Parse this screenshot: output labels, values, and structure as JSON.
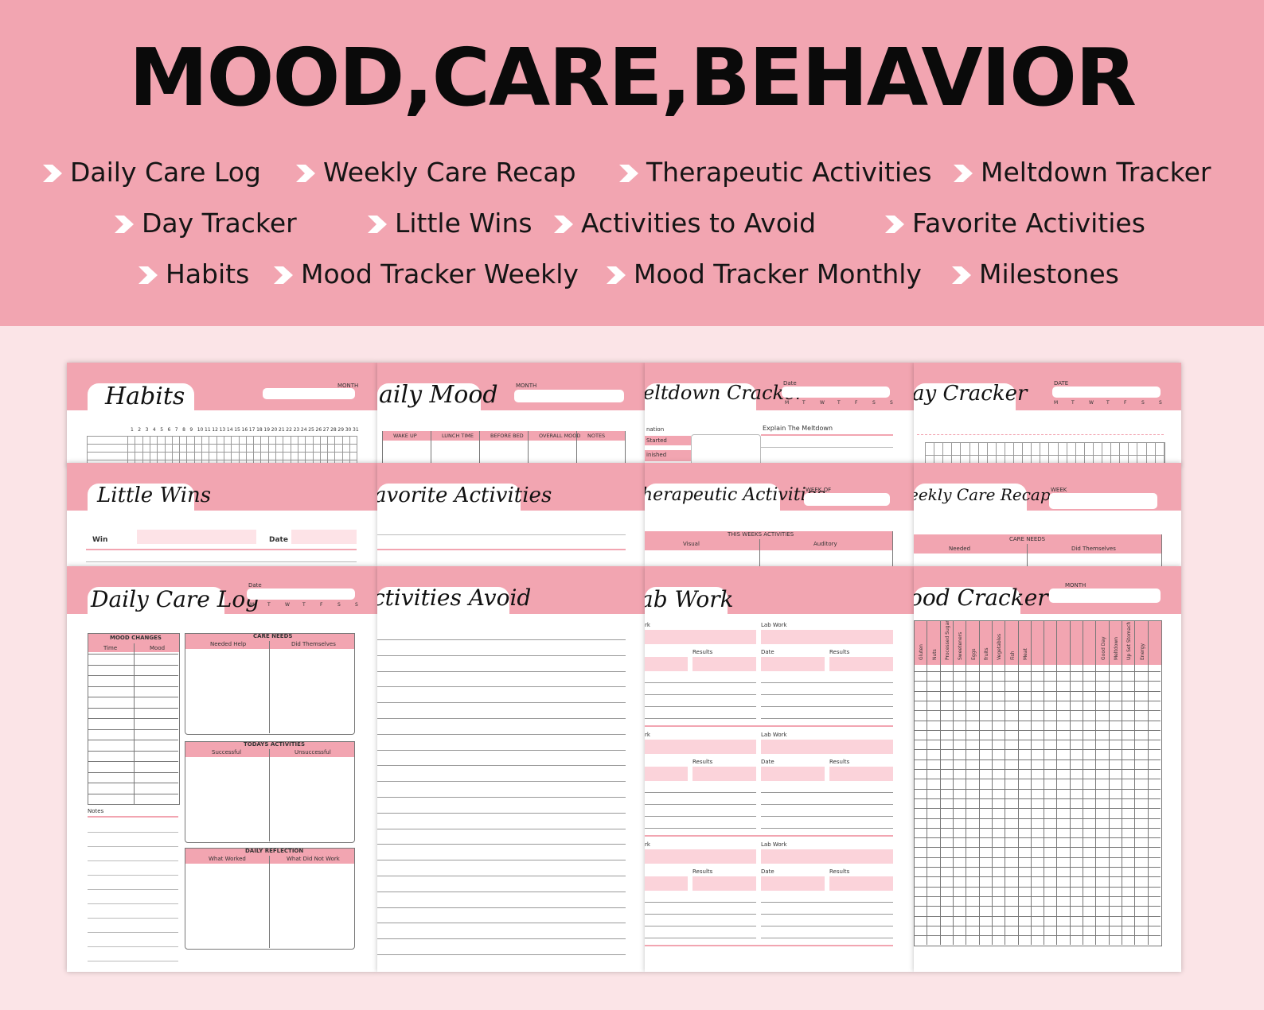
{
  "title": "MOOD,CARE,BEHAVIOR",
  "features": [
    "Daily Care Log",
    "Weekly Care Recap",
    "Therapeutic Activities",
    "Meltdown Tracker",
    "Day Tracker",
    "Little Wins",
    "Activities to Avoid",
    "Favorite Activities",
    "Habits",
    "Mood Tracker Weekly",
    "Mood Tracker Monthly",
    "Milestones"
  ],
  "colors": {
    "banner": "#f2a5b1",
    "background": "#fbe4e7",
    "accent": "#f2a5b1",
    "text": "#151515"
  },
  "pages": {
    "habits": {
      "title": "Habits",
      "month_label": "MONTH",
      "days": [
        "1",
        "2",
        "3",
        "4",
        "5",
        "6",
        "7",
        "8",
        "9",
        "10",
        "11",
        "12",
        "13",
        "14",
        "15",
        "16",
        "17",
        "18",
        "19",
        "20",
        "21",
        "22",
        "23",
        "24",
        "25",
        "26",
        "27",
        "28",
        "29",
        "30",
        "31"
      ]
    },
    "daily_mood": {
      "title": "aily Mood",
      "month_label": "MONTH",
      "columns": [
        "WAKE UP",
        "LUNCH TIME",
        "BEFORE BED",
        "OVERALL MOOD",
        "NOTES"
      ]
    },
    "meltdown": {
      "title": "eltdown Cracker",
      "date_label": "Date",
      "weekdays": [
        "M",
        "T",
        "W",
        "T",
        "F",
        "S",
        "S"
      ],
      "row_label": "nation",
      "started": "Started",
      "finished": "inished",
      "explain": "Explain The Meltdown"
    },
    "day_tracker": {
      "title": "ay Cracker",
      "date_label": "DATE",
      "weekdays": [
        "M",
        "T",
        "W",
        "T",
        "F",
        "S",
        "S"
      ]
    },
    "little_wins": {
      "title": "Little Wins",
      "win_label": "Win",
      "date_label": "Date"
    },
    "favorite": {
      "title": "avorite Activities"
    },
    "therapeutic": {
      "title": "herapeutic Activities",
      "week_label": "WEEK OF",
      "section": "THIS WEEKS ACTIVITIES",
      "col1": "Visual",
      "col2": "Auditory"
    },
    "weekly_recap": {
      "title": "eekly Care Recap",
      "week_label": "WEEK",
      "section": "CARE NEEDS",
      "col1": "Needed",
      "col2": "Did Themselves"
    },
    "daily_care": {
      "title": "Daily Care Log",
      "date_label": "Date",
      "weekdays": [
        "M",
        "T",
        "W",
        "T",
        "F",
        "S",
        "S"
      ],
      "mood_changes": "MOOD CHANGES",
      "time": "Time",
      "mood": "Mood",
      "notes": "Notes",
      "care_needs": "CARE NEEDS",
      "needed_help": "Needed Help",
      "did_themselves": "Did Themselves",
      "todays_activities": "TODAYS ACTIVITIES",
      "successful": "Successful",
      "unsuccessful": "Unsuccessful",
      "daily_reflection": "DAILY REFLECTION",
      "what_worked": "What Worked",
      "what_did_not": "What Did Not Work"
    },
    "activities_avoid": {
      "title": "ctivities Avoid"
    },
    "lab_work": {
      "title": "ab Work",
      "lab_left": "rk",
      "lab_right": "Lab Work",
      "results": "Results",
      "date": "Date"
    },
    "food_tracker": {
      "title": "ood Cracker",
      "month_label": "MONTH",
      "columns": [
        "Gluten",
        "Nuts",
        "Processed Sugar",
        "Sweeteners",
        "Eggs",
        "fruits",
        "Vegetables",
        "Fish",
        "Meat",
        "",
        "",
        "",
        "",
        "",
        "Good Day",
        "Meltdown",
        "Up Set Stomach",
        "Energy"
      ]
    }
  }
}
